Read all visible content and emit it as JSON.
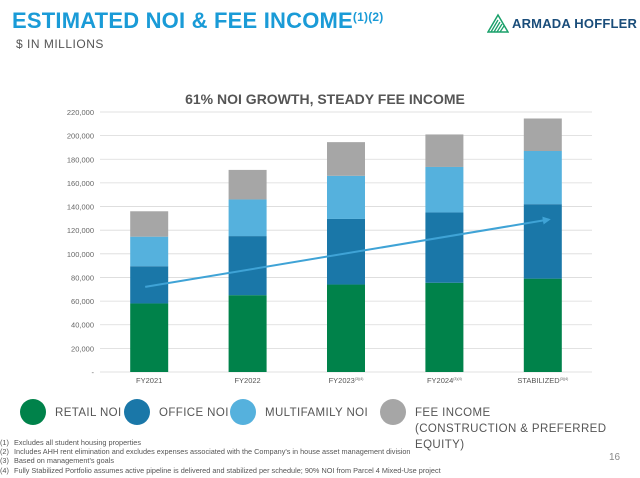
{
  "header": {
    "title": "ESTIMATED NOI & FEE INCOME",
    "title_sup": "(1)(2)",
    "subtitle": "$ IN MILLIONS"
  },
  "logo": {
    "text": "ARMADA HOFFLER",
    "icon": "armada-hoffler-logo-icon"
  },
  "chart_data": {
    "type": "bar",
    "stacked": true,
    "title": "61% NOI GROWTH, STEADY FEE INCOME",
    "categories": [
      {
        "label": "FY2021",
        "sup": ""
      },
      {
        "label": "FY2022",
        "sup": ""
      },
      {
        "label": "FY2023",
        "sup": "(3)(4)"
      },
      {
        "label": "FY2024",
        "sup": "(3)(4)"
      },
      {
        "label": "STABILIZED",
        "sup": "(3)(4)"
      }
    ],
    "series": [
      {
        "name": "RETAIL NOI",
        "color": "#00824a",
        "values": [
          58000,
          65000,
          74000,
          75500,
          79000
        ]
      },
      {
        "name": "OFFICE NOI",
        "color": "#1a77a8",
        "values": [
          31500,
          50000,
          55500,
          59500,
          63000
        ]
      },
      {
        "name": "MULTIFAMILY NOI",
        "color": "#55b1dd",
        "values": [
          25000,
          31000,
          36500,
          38500,
          45000
        ]
      },
      {
        "name": "FEE INCOME",
        "name_line2": "(CONSTRUCTION & PREFERRED EQUITY)",
        "color": "#a6a6a6",
        "values": [
          21500,
          25000,
          28500,
          27500,
          27500
        ]
      }
    ],
    "trendline": {
      "color": "#3fa3d6",
      "start": 72000,
      "end": 129000
    },
    "yticks": [
      "-",
      "20,000",
      "40,000",
      "60,000",
      "80,000",
      "100,000",
      "120,000",
      "140,000",
      "160,000",
      "180,000",
      "200,000",
      "220,000"
    ],
    "ylim": [
      0,
      220000
    ],
    "grid": true,
    "legend_position": "bottom"
  },
  "footnotes": [
    {
      "num": "(1)",
      "text": "Excludes all student housing properties"
    },
    {
      "num": "(2)",
      "text": "Includes AHH rent elimination and excludes expenses associated with the Company's in house asset management division"
    },
    {
      "num": "(3)",
      "text": "Based on management's goals"
    },
    {
      "num": "(4)",
      "text": "Fully Stabilized Portfolio assumes active pipeline is delivered and stabilized per schedule; 90% NOI from Parcel 4 Mixed-Use project"
    }
  ],
  "page_number": "16"
}
